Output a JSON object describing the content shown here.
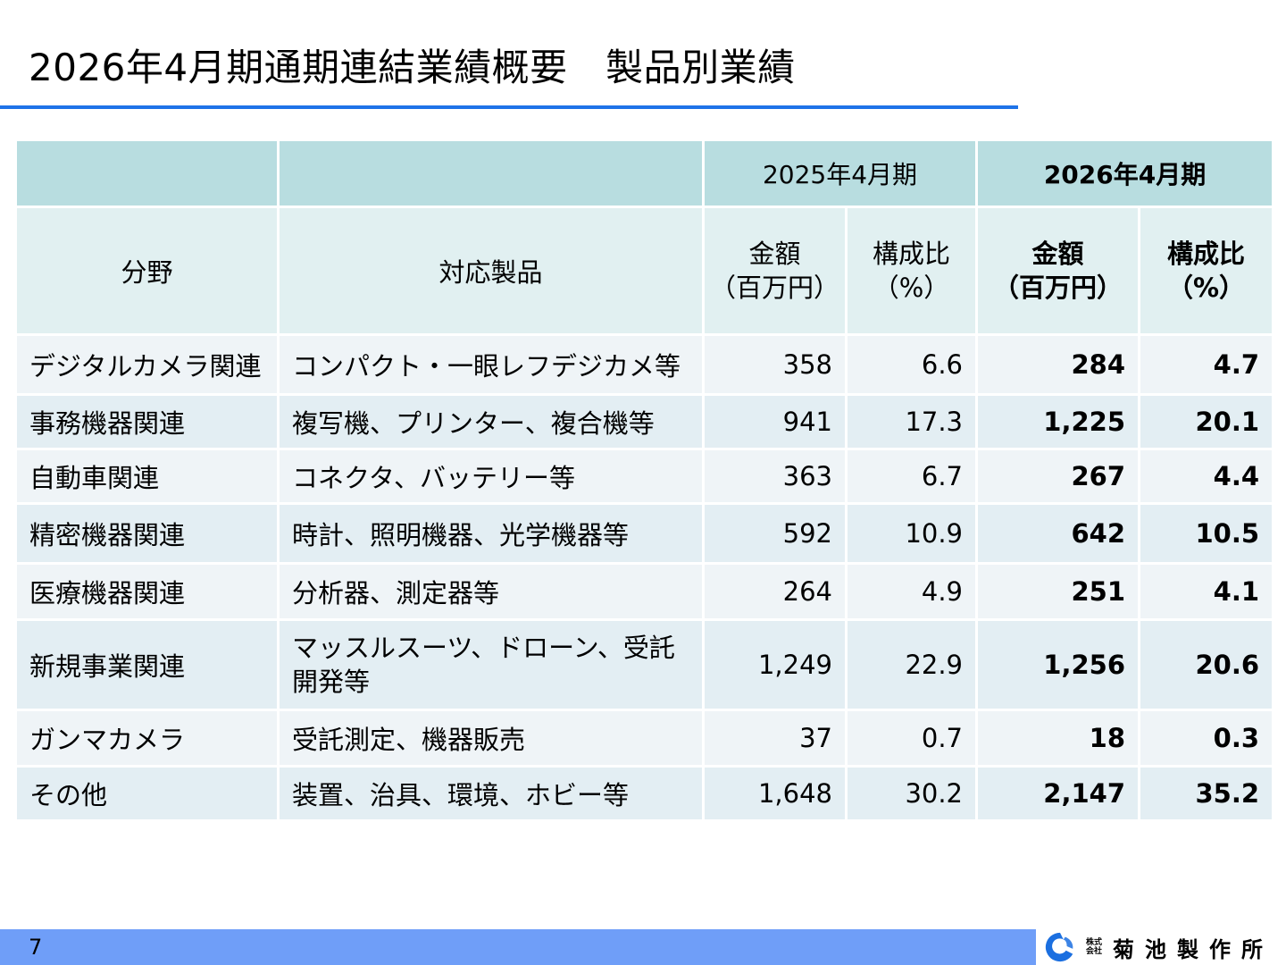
{
  "title": "2026年4月期通期連結業績概要　製品別業績",
  "table": {
    "period_prev": "2025年4月期",
    "period_curr": "2026年4月期",
    "headers": {
      "field": "分野",
      "products": "対応製品",
      "amount_line1": "金額",
      "amount_line2": "（百万円）",
      "ratio_line1": "構成比",
      "ratio_line2": "（%）"
    },
    "rows": [
      {
        "field": "デジタルカメラ関連",
        "products": "コンパクト・一眼レフデジカメ等",
        "prev_amount": "358",
        "prev_ratio": "6.6",
        "curr_amount": "284",
        "curr_ratio": "4.7"
      },
      {
        "field": "事務機器関連",
        "products": "複写機、プリンター、複合機等",
        "prev_amount": "941",
        "prev_ratio": "17.3",
        "curr_amount": "1,225",
        "curr_ratio": "20.1"
      },
      {
        "field": "自動車関連",
        "products": "コネクタ、バッテリー等",
        "prev_amount": "363",
        "prev_ratio": "6.7",
        "curr_amount": "267",
        "curr_ratio": "4.4"
      },
      {
        "field": "精密機器関連",
        "products": "時計、照明機器、光学機器等",
        "prev_amount": "592",
        "prev_ratio": "10.9",
        "curr_amount": "642",
        "curr_ratio": "10.5"
      },
      {
        "field": "医療機器関連",
        "products": "分析器、測定器等",
        "prev_amount": "264",
        "prev_ratio": "4.9",
        "curr_amount": "251",
        "curr_ratio": "4.1"
      },
      {
        "field": "新規事業関連",
        "products_line1": "マッスルスーツ、ドローン、受託",
        "products_line2": "開発等",
        "prev_amount": "1,249",
        "prev_ratio": "22.9",
        "curr_amount": "1,256",
        "curr_ratio": "20.6"
      },
      {
        "field": "ガンマカメラ",
        "products": "受託測定、機器販売",
        "prev_amount": "37",
        "prev_ratio": "0.7",
        "curr_amount": "18",
        "curr_ratio": "0.3"
      },
      {
        "field": "その他",
        "products": "装置、治具、環境、ホビー等",
        "prev_amount": "1,648",
        "prev_ratio": "30.2",
        "curr_amount": "2,147",
        "curr_ratio": "35.2"
      }
    ]
  },
  "footer": {
    "page_number": "7",
    "company_kabushiki_line1": "株式",
    "company_kabushiki_line2": "会社",
    "company_name": "菊池製作所",
    "logo_icon": "kikuchi-logo-icon",
    "bar_color": "#6f9ef8"
  },
  "colors": {
    "title_rule": "#1e73e8",
    "header_top_bg": "#b8dde0",
    "header_sub_bg": "#e1f0f1",
    "row_bg": "#eff4f7",
    "row_alt_bg": "#e3eef3"
  }
}
